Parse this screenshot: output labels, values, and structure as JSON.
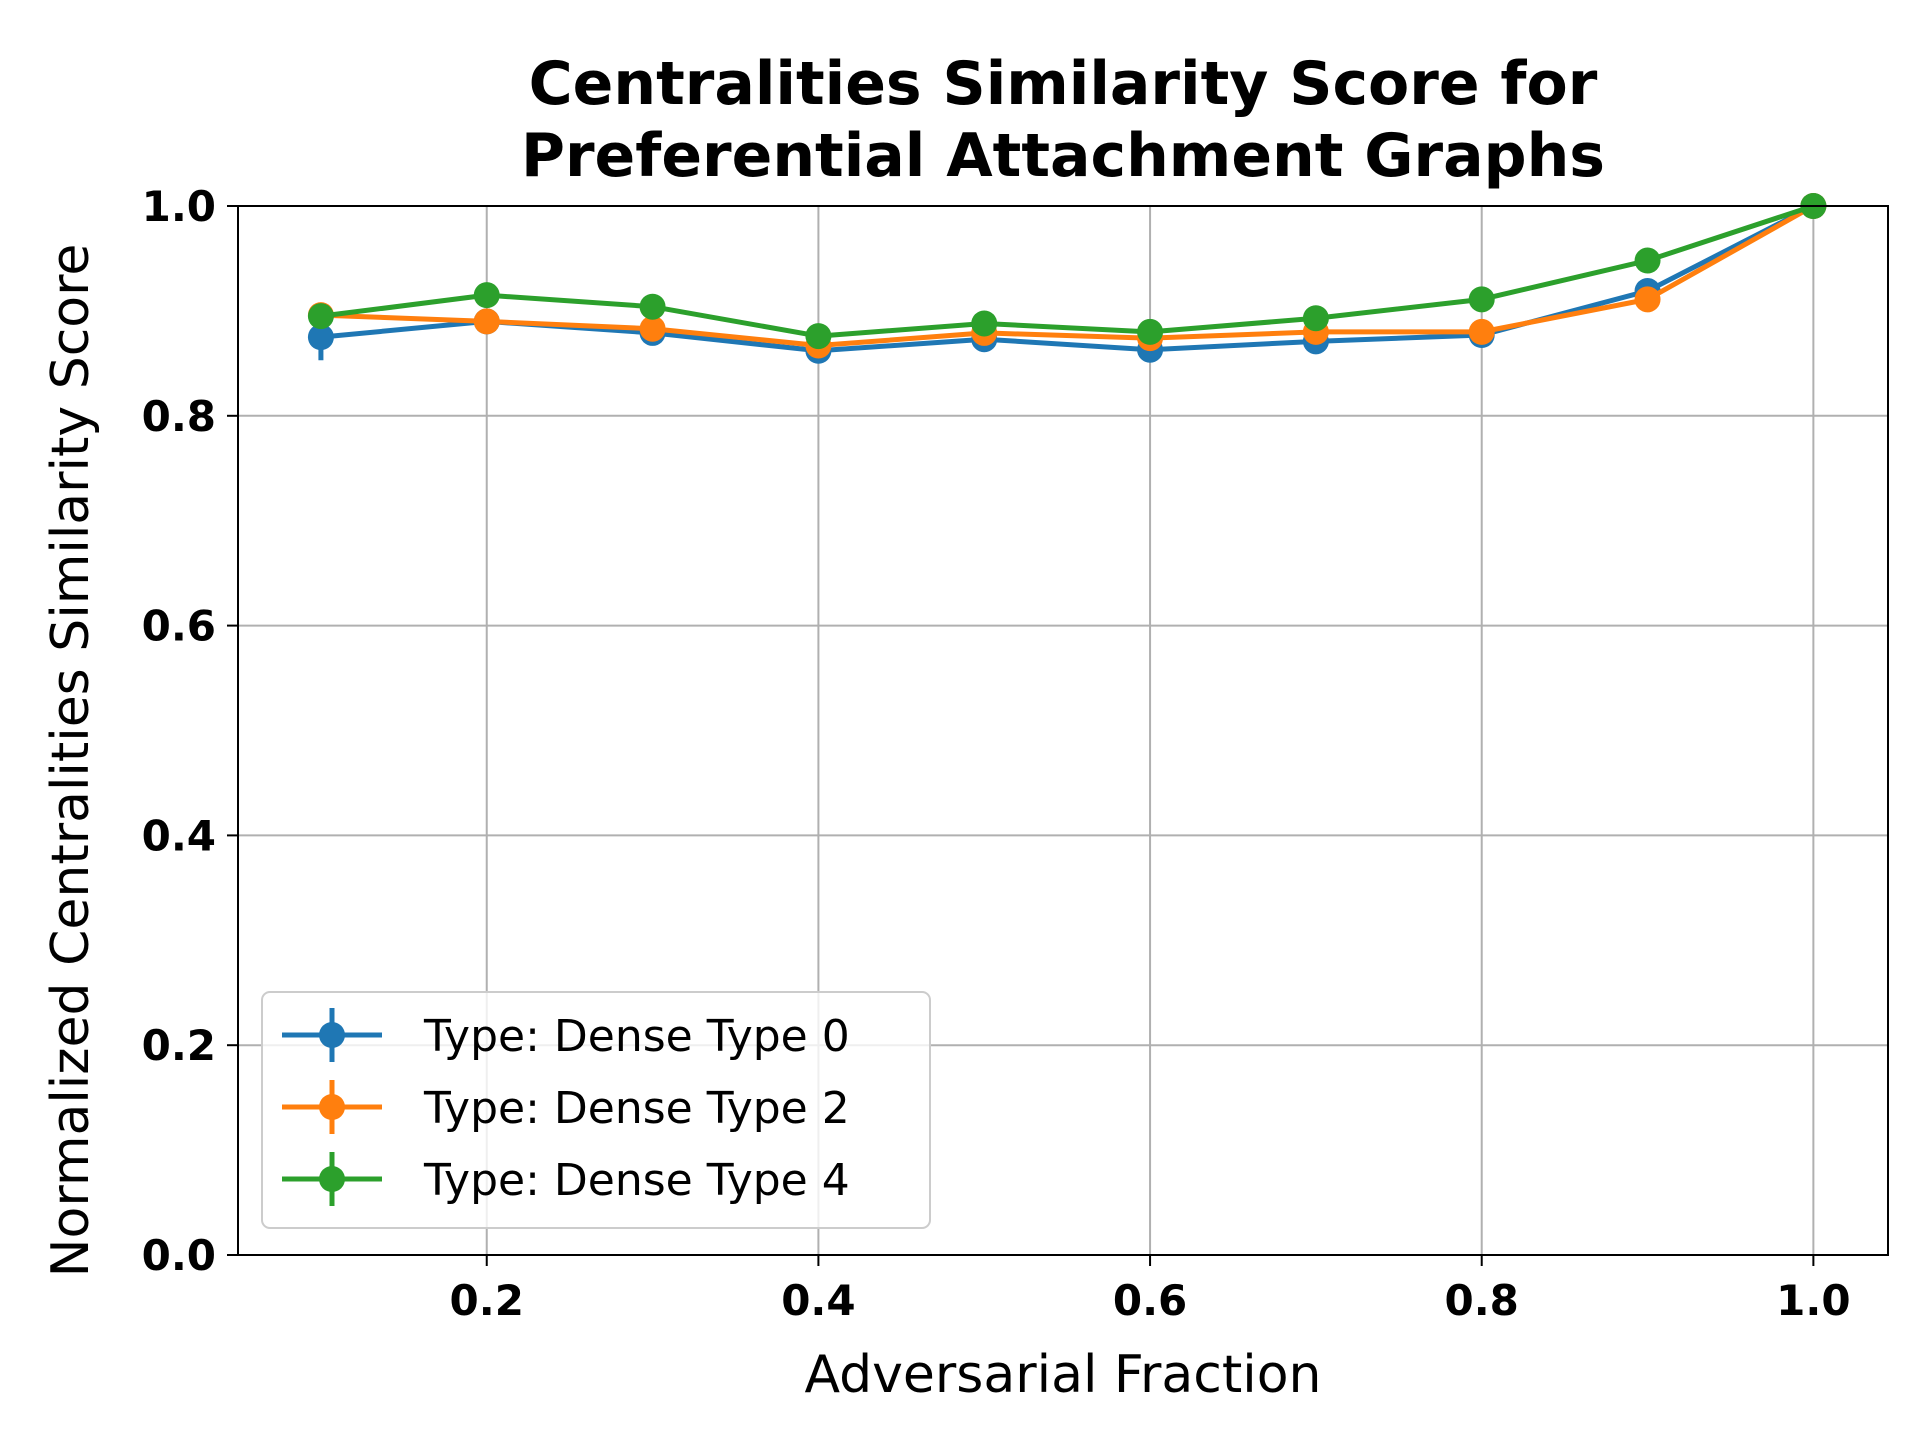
{
  "chart_data": {
    "type": "line",
    "title_lines": [
      "Centralities Similarity Score for",
      "Preferential Attachment Graphs"
    ],
    "xlabel": "Adversarial Fraction",
    "ylabel": "Normalized Centralities Similarity Score",
    "xlim": [
      0.05,
      1.045
    ],
    "ylim": [
      0.0,
      1.0
    ],
    "xticks": [
      0.2,
      0.4,
      0.6,
      0.8,
      1.0
    ],
    "xtick_labels": [
      "0.2",
      "0.4",
      "0.6",
      "0.8",
      "1.0"
    ],
    "yticks": [
      0.0,
      0.2,
      0.4,
      0.6,
      0.8,
      1.0
    ],
    "ytick_labels": [
      "0.0",
      "0.2",
      "0.4",
      "0.6",
      "0.8",
      "1.0"
    ],
    "grid": true,
    "legend_position": "lower-left",
    "x": [
      0.1,
      0.2,
      0.3,
      0.4,
      0.5,
      0.6,
      0.7,
      0.8,
      0.9,
      1.0
    ],
    "series": [
      {
        "name": "Type: Dense Type 0",
        "color": "#1f77b4",
        "values": [
          0.875,
          0.89,
          0.879,
          0.862,
          0.873,
          0.863,
          0.871,
          0.877,
          0.919,
          1.0
        ],
        "errors": [
          0.022,
          0.004,
          0.004,
          0.004,
          0.004,
          0.004,
          0.004,
          0.004,
          0.004,
          0.0
        ]
      },
      {
        "name": "Type: Dense Type 2",
        "color": "#ff7f0e",
        "values": [
          0.896,
          0.89,
          0.883,
          0.867,
          0.879,
          0.874,
          0.88,
          0.88,
          0.911,
          1.0
        ],
        "errors": [
          0.012,
          0.004,
          0.004,
          0.004,
          0.004,
          0.004,
          0.004,
          0.004,
          0.004,
          0.0
        ]
      },
      {
        "name": "Type: Dense Type 4",
        "color": "#2ca02c",
        "values": [
          0.895,
          0.915,
          0.904,
          0.876,
          0.888,
          0.88,
          0.893,
          0.911,
          0.948,
          1.0
        ],
        "errors": [
          0.01,
          0.004,
          0.004,
          0.004,
          0.004,
          0.004,
          0.004,
          0.004,
          0.004,
          0.0
        ]
      }
    ]
  }
}
